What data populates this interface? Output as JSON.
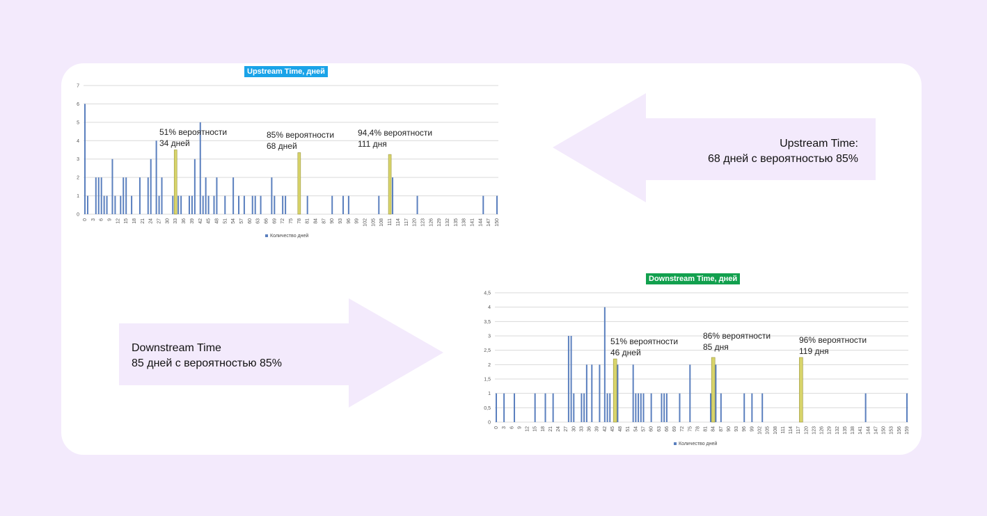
{
  "chart_data": [
    {
      "type": "bar",
      "title": "Upstream Time, дней",
      "title_color": "#1aa3e8",
      "legend": "Количество дней",
      "ylim": [
        0,
        7
      ],
      "yticks": [
        "0",
        "1",
        "2",
        "3",
        "4",
        "5",
        "6",
        "7"
      ],
      "xticks": [
        "0",
        "3",
        "6",
        "9",
        "12",
        "15",
        "18",
        "21",
        "24",
        "27",
        "30",
        "33",
        "36",
        "39",
        "42",
        "45",
        "48",
        "51",
        "54",
        "57",
        "60",
        "63",
        "66",
        "69",
        "72",
        "75",
        "78",
        "81",
        "84",
        "87",
        "90",
        "93",
        "96",
        "99",
        "102",
        "105",
        "108",
        "111",
        "114",
        "117",
        "120",
        "123",
        "126",
        "129",
        "132",
        "135",
        "138",
        "141",
        "144",
        "147",
        "150"
      ],
      "xmax": 150,
      "bar_color": "#5a7fbe",
      "highlight_color": "#d8d46a",
      "series": [
        {
          "points": [
            {
              "x": 0,
              "y": 6
            },
            {
              "x": 1,
              "y": 1
            },
            {
              "x": 4,
              "y": 2
            },
            {
              "x": 5,
              "y": 2
            },
            {
              "x": 6,
              "y": 2
            },
            {
              "x": 7,
              "y": 1
            },
            {
              "x": 8,
              "y": 1
            },
            {
              "x": 10,
              "y": 3
            },
            {
              "x": 11,
              "y": 1
            },
            {
              "x": 13,
              "y": 1
            },
            {
              "x": 14,
              "y": 2
            },
            {
              "x": 15,
              "y": 2
            },
            {
              "x": 17,
              "y": 1
            },
            {
              "x": 20,
              "y": 2
            },
            {
              "x": 23,
              "y": 2
            },
            {
              "x": 24,
              "y": 3
            },
            {
              "x": 26,
              "y": 4
            },
            {
              "x": 27,
              "y": 1
            },
            {
              "x": 28,
              "y": 2
            },
            {
              "x": 32,
              "y": 1
            },
            {
              "x": 34,
              "y": 1
            },
            {
              "x": 35,
              "y": 1
            },
            {
              "x": 38,
              "y": 1
            },
            {
              "x": 39,
              "y": 1
            },
            {
              "x": 40,
              "y": 3
            },
            {
              "x": 42,
              "y": 5
            },
            {
              "x": 43,
              "y": 1
            },
            {
              "x": 44,
              "y": 2
            },
            {
              "x": 45,
              "y": 1
            },
            {
              "x": 47,
              "y": 1
            },
            {
              "x": 48,
              "y": 2
            },
            {
              "x": 51,
              "y": 1
            },
            {
              "x": 54,
              "y": 2
            },
            {
              "x": 56,
              "y": 1
            },
            {
              "x": 58,
              "y": 1
            },
            {
              "x": 61,
              "y": 1
            },
            {
              "x": 62,
              "y": 1
            },
            {
              "x": 64,
              "y": 1
            },
            {
              "x": 68,
              "y": 2
            },
            {
              "x": 69,
              "y": 1
            },
            {
              "x": 72,
              "y": 1
            },
            {
              "x": 73,
              "y": 1
            },
            {
              "x": 81,
              "y": 1
            },
            {
              "x": 90,
              "y": 1
            },
            {
              "x": 94,
              "y": 1
            },
            {
              "x": 96,
              "y": 1
            },
            {
              "x": 107,
              "y": 1
            },
            {
              "x": 112,
              "y": 2
            },
            {
              "x": 121,
              "y": 1
            },
            {
              "x": 145,
              "y": 1
            },
            {
              "x": 150,
              "y": 1
            }
          ]
        }
      ],
      "highlights": [
        {
          "x": 33,
          "y": 3.5,
          "label_pct": "51% вероятности",
          "label_days": "34 дней"
        },
        {
          "x": 78,
          "y": 3.35,
          "label_pct": "85% вероятности",
          "label_days": "68 дней"
        },
        {
          "x": 111,
          "y": 3.25,
          "label_pct": "94,4% вероятности",
          "label_days": "111 дня"
        }
      ]
    },
    {
      "type": "bar",
      "title": "Downstream Time, дней",
      "title_color": "#12a04e",
      "legend": "Количество дней",
      "ylim": [
        0,
        4.5
      ],
      "yticks": [
        "0",
        "0,5",
        "1",
        "1,5",
        "2",
        "2,5",
        "3",
        "3,5",
        "4",
        "4,5"
      ],
      "xticks": [
        "0",
        "3",
        "6",
        "9",
        "12",
        "15",
        "18",
        "21",
        "24",
        "27",
        "30",
        "33",
        "36",
        "39",
        "42",
        "45",
        "48",
        "51",
        "54",
        "57",
        "60",
        "63",
        "66",
        "69",
        "72",
        "75",
        "78",
        "81",
        "84",
        "87",
        "90",
        "93",
        "96",
        "99",
        "102",
        "105",
        "108",
        "111",
        "114",
        "117",
        "120",
        "123",
        "126",
        "129",
        "132",
        "135",
        "138",
        "141",
        "144",
        "147",
        "150",
        "153",
        "156",
        "159"
      ],
      "xmax": 159,
      "bar_color": "#5a7fbe",
      "highlight_color": "#d8d46a",
      "series": [
        {
          "points": [
            {
              "x": 0,
              "y": 1
            },
            {
              "x": 3,
              "y": 1
            },
            {
              "x": 7,
              "y": 1
            },
            {
              "x": 15,
              "y": 1
            },
            {
              "x": 19,
              "y": 1
            },
            {
              "x": 22,
              "y": 1
            },
            {
              "x": 28,
              "y": 3
            },
            {
              "x": 29,
              "y": 3
            },
            {
              "x": 30,
              "y": 1
            },
            {
              "x": 33,
              "y": 1
            },
            {
              "x": 34,
              "y": 1
            },
            {
              "x": 35,
              "y": 2
            },
            {
              "x": 37,
              "y": 2
            },
            {
              "x": 40,
              "y": 2
            },
            {
              "x": 42,
              "y": 4
            },
            {
              "x": 43,
              "y": 1
            },
            {
              "x": 44,
              "y": 1
            },
            {
              "x": 47,
              "y": 2
            },
            {
              "x": 53,
              "y": 2
            },
            {
              "x": 54,
              "y": 1
            },
            {
              "x": 55,
              "y": 1
            },
            {
              "x": 56,
              "y": 1
            },
            {
              "x": 57,
              "y": 1
            },
            {
              "x": 60,
              "y": 1
            },
            {
              "x": 64,
              "y": 1
            },
            {
              "x": 65,
              "y": 1
            },
            {
              "x": 66,
              "y": 1
            },
            {
              "x": 71,
              "y": 1
            },
            {
              "x": 75,
              "y": 2
            },
            {
              "x": 83,
              "y": 1
            },
            {
              "x": 85,
              "y": 2
            },
            {
              "x": 87,
              "y": 1
            },
            {
              "x": 96,
              "y": 1
            },
            {
              "x": 99,
              "y": 1
            },
            {
              "x": 103,
              "y": 1
            },
            {
              "x": 143,
              "y": 1
            },
            {
              "x": 159,
              "y": 1
            }
          ]
        }
      ],
      "highlights": [
        {
          "x": 46,
          "y": 2.2,
          "label_pct": "51% вероятности",
          "label_days": "46 дней"
        },
        {
          "x": 84,
          "y": 2.25,
          "label_pct": "86% вероятности",
          "label_days": "85 дня"
        },
        {
          "x": 118,
          "y": 2.25,
          "label_pct": "96% вероятности",
          "label_days": "119 дня"
        }
      ]
    }
  ],
  "callouts": {
    "upstream": {
      "line1": "Upstream Time:",
      "line2": "68 дней с вероятностью 85%"
    },
    "downstream": {
      "line1": "Downstream Time",
      "line2": "85 дней с вероятностью 85%"
    }
  },
  "colors": {
    "background": "#f3eafc",
    "card": "#ffffff",
    "arrow": "#f3eafc",
    "gridline": "#d9d9d9"
  }
}
